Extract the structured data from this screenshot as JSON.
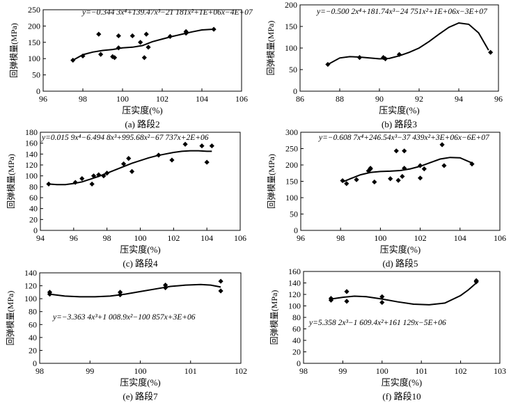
{
  "chart_data": [
    {
      "type": "scatter",
      "caption": "(a) 路段2",
      "equation": "y=−0.344 3x⁴+139.47x³−21 181x²+1E+06x−4E+07",
      "xlabel": "压实度(%)",
      "ylabel": "回弹模量(MPa)",
      "xlim": [
        96,
        106
      ],
      "ylim": [
        0,
        250
      ],
      "xticks": [
        96,
        98,
        100,
        102,
        104,
        106
      ],
      "yticks": [
        0,
        50,
        100,
        150,
        200,
        250
      ],
      "grid": false,
      "points": [
        [
          97.5,
          95
        ],
        [
          98.0,
          108
        ],
        [
          98.8,
          175
        ],
        [
          98.9,
          113
        ],
        [
          99.5,
          106
        ],
        [
          99.6,
          103
        ],
        [
          99.8,
          170
        ],
        [
          99.8,
          133
        ],
        [
          100.5,
          170
        ],
        [
          100.9,
          150
        ],
        [
          101.1,
          103
        ],
        [
          101.2,
          175
        ],
        [
          101.3,
          135
        ],
        [
          102.4,
          168
        ],
        [
          103.2,
          178
        ],
        [
          103.2,
          183
        ],
        [
          104.6,
          190
        ]
      ],
      "trendline": [
        [
          97.5,
          95
        ],
        [
          98.0,
          112
        ],
        [
          98.5,
          120
        ],
        [
          99.0,
          125
        ],
        [
          99.5,
          128
        ],
        [
          100.0,
          133
        ],
        [
          100.5,
          135
        ],
        [
          101.0,
          140
        ],
        [
          101.5,
          152
        ],
        [
          102.0,
          160
        ],
        [
          102.5,
          168
        ],
        [
          103.0,
          175
        ],
        [
          103.5,
          182
        ],
        [
          104.0,
          188
        ],
        [
          104.5,
          190
        ]
      ]
    },
    {
      "type": "scatter",
      "caption": "(b) 路段3",
      "equation": "y=−0.500 2x⁴+181.74x³−24 751x²+1E+06x−3E+07",
      "xlabel": "压实度(%)",
      "ylabel": "回弹模量(MPa)",
      "xlim": [
        86,
        96
      ],
      "ylim": [
        0,
        200
      ],
      "xticks": [
        86,
        88,
        90,
        92,
        94,
        96
      ],
      "yticks": [
        0,
        50,
        100,
        150,
        200
      ],
      "grid": false,
      "points": [
        [
          87.4,
          62
        ],
        [
          89.0,
          78
        ],
        [
          90.2,
          78
        ],
        [
          90.3,
          75
        ],
        [
          91.0,
          85
        ],
        [
          95.6,
          90
        ]
      ],
      "trendline": [
        [
          87.4,
          62
        ],
        [
          88.0,
          77
        ],
        [
          88.5,
          80
        ],
        [
          89.0,
          79
        ],
        [
          89.5,
          77
        ],
        [
          90.0,
          75
        ],
        [
          90.5,
          76
        ],
        [
          91.0,
          82
        ],
        [
          91.5,
          90
        ],
        [
          92.0,
          100
        ],
        [
          92.5,
          115
        ],
        [
          93.0,
          132
        ],
        [
          93.5,
          148
        ],
        [
          94.0,
          158
        ],
        [
          94.5,
          155
        ],
        [
          95.0,
          135
        ],
        [
          95.5,
          95
        ]
      ]
    },
    {
      "type": "scatter",
      "caption": "(c) 路段4",
      "equation": "y=0.015 9x⁴−6.494 8x³+995.68x²−67 737x+2E+06",
      "xlabel": "压实度(%)",
      "ylabel": "回弹模量(MPa)",
      "xlim": [
        94,
        106
      ],
      "ylim": [
        0,
        180
      ],
      "xticks": [
        94,
        96,
        98,
        100,
        102,
        104,
        106
      ],
      "yticks": [
        0,
        20,
        40,
        60,
        80,
        100,
        120,
        140,
        160,
        180
      ],
      "grid": false,
      "points": [
        [
          94.5,
          85
        ],
        [
          96.1,
          88
        ],
        [
          96.5,
          95
        ],
        [
          97.1,
          85
        ],
        [
          97.2,
          100
        ],
        [
          97.5,
          102
        ],
        [
          97.8,
          100
        ],
        [
          98.0,
          105
        ],
        [
          99.0,
          122
        ],
        [
          99.3,
          132
        ],
        [
          99.5,
          108
        ],
        [
          101.1,
          138
        ],
        [
          101.9,
          129
        ],
        [
          102.7,
          158
        ],
        [
          103.7,
          155
        ],
        [
          104.0,
          125
        ],
        [
          104.3,
          155
        ]
      ],
      "trendline": [
        [
          94.5,
          85
        ],
        [
          95.0,
          84
        ],
        [
          95.5,
          84
        ],
        [
          96.0,
          86
        ],
        [
          96.5,
          89
        ],
        [
          97.0,
          94
        ],
        [
          97.5,
          99
        ],
        [
          98.0,
          105
        ],
        [
          98.5,
          111
        ],
        [
          99.0,
          117
        ],
        [
          99.5,
          123
        ],
        [
          100.0,
          128
        ],
        [
          100.5,
          133
        ],
        [
          101.0,
          137
        ],
        [
          101.5,
          140
        ],
        [
          102.0,
          143
        ],
        [
          102.5,
          145
        ],
        [
          103.0,
          146
        ],
        [
          103.5,
          146
        ],
        [
          104.0,
          145
        ],
        [
          104.3,
          145
        ]
      ]
    },
    {
      "type": "scatter",
      "caption": "(d) 路段5",
      "equation": "y=−0.608 7x⁴+246.54x³−37 439x²+3E+06x−6E+07",
      "xlabel": "压实度(%)",
      "ylabel": "回弹模量(MPa)",
      "xlim": [
        96,
        106
      ],
      "ylim": [
        0,
        300
      ],
      "xticks": [
        96,
        98,
        100,
        102,
        104,
        106
      ],
      "yticks": [
        0,
        50,
        100,
        150,
        200,
        250,
        300
      ],
      "grid": false,
      "points": [
        [
          98.1,
          152
        ],
        [
          98.3,
          143
        ],
        [
          98.8,
          155
        ],
        [
          99.4,
          182
        ],
        [
          99.5,
          188
        ],
        [
          99.5,
          190
        ],
        [
          99.7,
          148
        ],
        [
          100.5,
          158
        ],
        [
          100.8,
          243
        ],
        [
          100.9,
          153
        ],
        [
          101.1,
          165
        ],
        [
          101.2,
          190
        ],
        [
          101.2,
          243
        ],
        [
          102.0,
          198
        ],
        [
          102.0,
          160
        ],
        [
          102.2,
          188
        ],
        [
          103.1,
          262
        ],
        [
          103.2,
          198
        ],
        [
          104.6,
          203
        ]
      ],
      "trendline": [
        [
          98.1,
          148
        ],
        [
          98.5,
          158
        ],
        [
          99.0,
          170
        ],
        [
          99.5,
          177
        ],
        [
          100.0,
          180
        ],
        [
          100.5,
          181
        ],
        [
          101.0,
          183
        ],
        [
          101.5,
          188
        ],
        [
          102.0,
          196
        ],
        [
          102.5,
          207
        ],
        [
          103.0,
          218
        ],
        [
          103.5,
          223
        ],
        [
          104.0,
          222
        ],
        [
          104.6,
          206
        ]
      ]
    },
    {
      "type": "scatter",
      "caption": "(e) 路段7",
      "equation": "y=−3.363 4x³+1 008.9x²−100 857x+3E+06",
      "xlabel": "压实度(%)",
      "ylabel": "回弹模量(MPa)",
      "xlim": [
        98,
        102
      ],
      "ylim": [
        0,
        140
      ],
      "xticks": [
        98,
        99,
        100,
        101,
        102
      ],
      "yticks": [
        0,
        20,
        40,
        60,
        80,
        100,
        120,
        140
      ],
      "grid": false,
      "points": [
        [
          98.2,
          110
        ],
        [
          98.2,
          107
        ],
        [
          99.6,
          110
        ],
        [
          99.6,
          106
        ],
        [
          100.5,
          121
        ],
        [
          100.5,
          117
        ],
        [
          101.6,
          127
        ],
        [
          101.6,
          112
        ]
      ],
      "trendline": [
        [
          98.2,
          107
        ],
        [
          98.5,
          104
        ],
        [
          98.8,
          103
        ],
        [
          99.1,
          103
        ],
        [
          99.4,
          104
        ],
        [
          99.7,
          107
        ],
        [
          100.0,
          111
        ],
        [
          100.3,
          115
        ],
        [
          100.6,
          119
        ],
        [
          100.9,
          121
        ],
        [
          101.2,
          122
        ],
        [
          101.4,
          121
        ],
        [
          101.6,
          118
        ]
      ]
    },
    {
      "type": "scatter",
      "caption": "(f) 路段10",
      "equation": "y=5.358 2x³−1 609.4x²+161 129x−5E+06",
      "xlabel": "压实度(%)",
      "ylabel": "回弹模量(MPa)",
      "xlim": [
        98,
        103
      ],
      "ylim": [
        0,
        160
      ],
      "xticks": [
        98,
        99,
        100,
        101,
        102,
        103
      ],
      "yticks": [
        0,
        20,
        40,
        60,
        80,
        100,
        120,
        140,
        160
      ],
      "grid": false,
      "points": [
        [
          98.7,
          113
        ],
        [
          98.7,
          110
        ],
        [
          99.1,
          125
        ],
        [
          99.1,
          108
        ],
        [
          100.0,
          116
        ],
        [
          100.0,
          106
        ],
        [
          102.4,
          142
        ],
        [
          102.4,
          144
        ]
      ],
      "trendline": [
        [
          98.7,
          112
        ],
        [
          99.0,
          115
        ],
        [
          99.3,
          117
        ],
        [
          99.6,
          116
        ],
        [
          100.0,
          112
        ],
        [
          100.4,
          107
        ],
        [
          100.8,
          103
        ],
        [
          101.2,
          102
        ],
        [
          101.6,
          105
        ],
        [
          102.0,
          118
        ],
        [
          102.2,
          128
        ],
        [
          102.4,
          140
        ]
      ]
    }
  ]
}
